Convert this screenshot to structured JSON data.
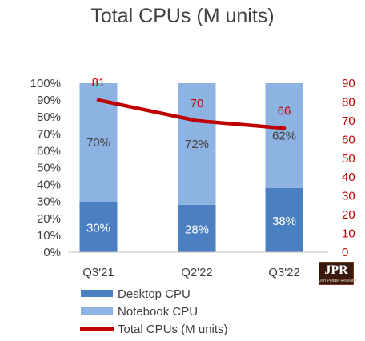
{
  "chart_data": {
    "type": "bar",
    "stacked": "percent",
    "title": "Total CPUs (M units)",
    "categories": [
      "Q3'21",
      "Q2'22",
      "Q3'22"
    ],
    "series": [
      {
        "name": "Desktop CPU",
        "type": "bar",
        "axis": "left",
        "values": [
          30,
          28,
          38
        ],
        "labels": [
          "30%",
          "28%",
          "38%"
        ],
        "color": "#4a7fc1"
      },
      {
        "name": "Notebook CPU",
        "type": "bar",
        "axis": "left",
        "values": [
          70,
          72,
          62
        ],
        "labels": [
          "70%",
          "72%",
          "62%"
        ],
        "color": "#8db3e2"
      },
      {
        "name": "Total CPUs (M units)",
        "type": "line",
        "axis": "right",
        "values": [
          81,
          70,
          66
        ],
        "labels": [
          "81",
          "70",
          "66"
        ],
        "color": "#c00000"
      }
    ],
    "y_left": {
      "min": 0,
      "max": 100,
      "step": 10,
      "ticks": [
        "0%",
        "10%",
        "20%",
        "30%",
        "40%",
        "50%",
        "60%",
        "70%",
        "80%",
        "90%",
        "100%"
      ]
    },
    "y_right": {
      "min": 0,
      "max": 90,
      "step": 10,
      "ticks": [
        "0",
        "10",
        "20",
        "30",
        "40",
        "50",
        "60",
        "70",
        "80",
        "90"
      ]
    },
    "grid": false,
    "legend_position": "bottom"
  },
  "logo": {
    "main": "JPR",
    "sub": "Jon Peddie Research"
  }
}
